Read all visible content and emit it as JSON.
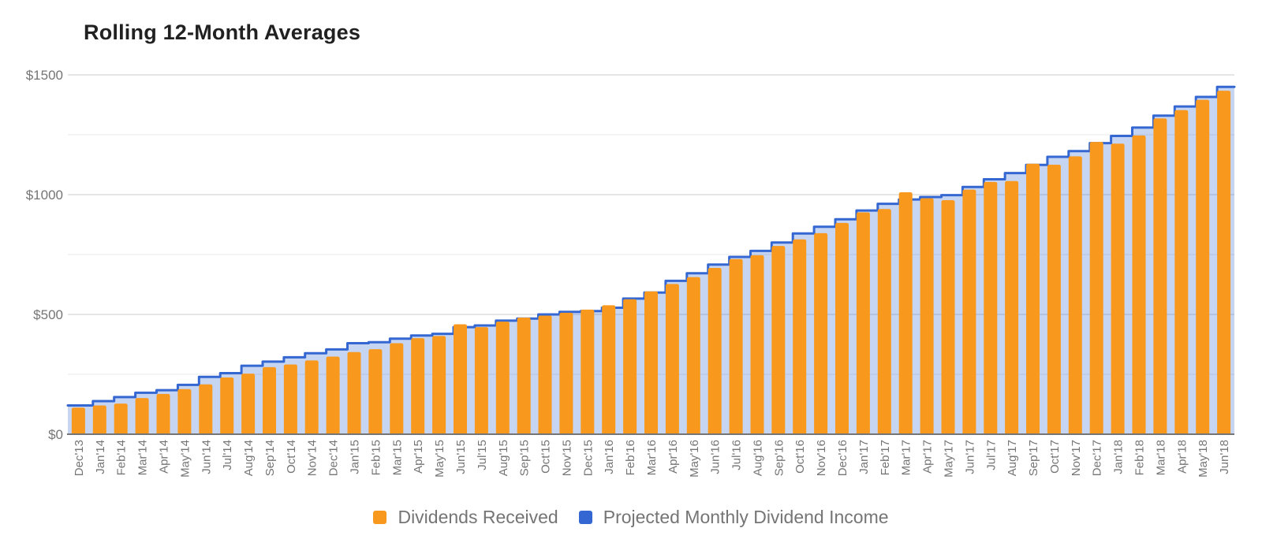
{
  "chart_data": {
    "type": "bar",
    "title": "Rolling 12-Month Averages",
    "xlabel": "",
    "ylabel": "",
    "ylim": [
      0,
      1500
    ],
    "grid": true,
    "legend_position": "bottom",
    "y_ticks": {
      "values": [
        0,
        500,
        1000,
        1500
      ],
      "labels": [
        "$0",
        "$500",
        "$1000",
        "$1500"
      ]
    },
    "minor_gridlines": [
      250,
      750,
      1250
    ],
    "categories": [
      "Dec'13",
      "Jan'14",
      "Feb'14",
      "Mar'14",
      "Apr'14",
      "May'14",
      "Jun'14",
      "Jul'14",
      "Aug'14",
      "Sep'14",
      "Oct'14",
      "Nov'14",
      "Dec'14",
      "Jan'15",
      "Feb'15",
      "Mar'15",
      "Apr'15",
      "May'15",
      "Jun'15",
      "Jul'15",
      "Aug'15",
      "Sep'15",
      "Oct'15",
      "Nov'15",
      "Dec'15",
      "Jan'16",
      "Feb'16",
      "Mar'16",
      "Apr'16",
      "May'16",
      "Jun'16",
      "Jul'16",
      "Aug'16",
      "Sep'16",
      "Oct'16",
      "Nov'16",
      "Dec'16",
      "Jan'17",
      "Feb'17",
      "Mar'17",
      "Apr'17",
      "May'17",
      "Jun'17",
      "Jul'17",
      "Aug'17",
      "Sep'17",
      "Oct'17",
      "Nov'17",
      "Dec'17",
      "Jan'18",
      "Feb'18",
      "Mar'18",
      "Apr'18",
      "May'18",
      "Jun'18"
    ],
    "series": [
      {
        "name": "Dividends Received",
        "type": "bar",
        "color": "#F8991D",
        "values": [
          111,
          120,
          128,
          151,
          168,
          188,
          208,
          237,
          253,
          280,
          291,
          308,
          324,
          343,
          355,
          380,
          401,
          410,
          459,
          447,
          470,
          487,
          495,
          507,
          520,
          538,
          563,
          596,
          627,
          656,
          694,
          731,
          747,
          786,
          813,
          839,
          882,
          926,
          940,
          1010,
          985,
          977,
          1021,
          1053,
          1057,
          1129,
          1125,
          1160,
          1220,
          1213,
          1247,
          1318,
          1353,
          1396,
          1434
        ]
      },
      {
        "name": "Projected Monthly Dividend Income",
        "type": "stepped-area",
        "color": "#3467D1",
        "fill": "#C5D3F0",
        "values": [
          120,
          138,
          155,
          173,
          184,
          206,
          239,
          255,
          286,
          303,
          321,
          338,
          354,
          380,
          384,
          399,
          412,
          419,
          447,
          454,
          474,
          483,
          500,
          511,
          514,
          528,
          566,
          591,
          640,
          672,
          708,
          740,
          765,
          800,
          838,
          866,
          897,
          934,
          962,
          980,
          990,
          998,
          1032,
          1064,
          1090,
          1124,
          1158,
          1182,
          1215,
          1245,
          1280,
          1330,
          1368,
          1408,
          1450
        ]
      }
    ],
    "axis_colors": {
      "major_gridline": "#CBCBCB",
      "minor_gridline": "#E8E8E8",
      "baseline": "#757575",
      "tick_text": "#757575"
    }
  }
}
